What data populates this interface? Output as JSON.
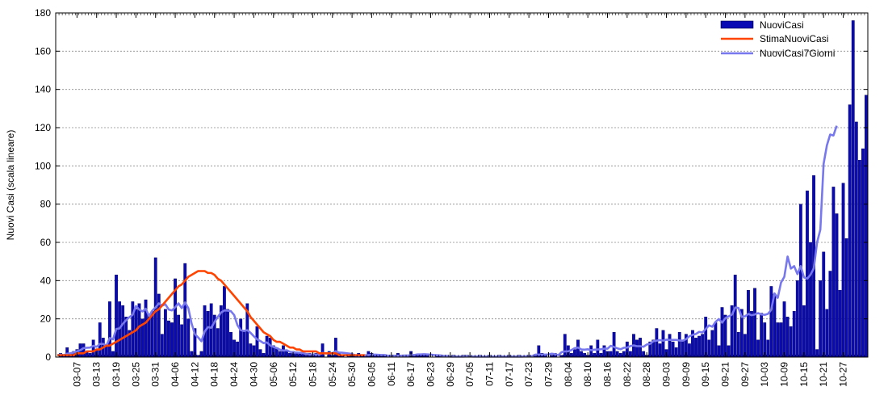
{
  "chart_data": {
    "type": "bar",
    "ylabel": "Nuovi Casi (scala lineare)",
    "ylim": [
      0,
      180
    ],
    "yticks": [
      0,
      20,
      40,
      60,
      80,
      100,
      120,
      140,
      160,
      180
    ],
    "grid": true,
    "legend_position": "top-right",
    "start_date": "03-01",
    "xtick_labels": [
      "03-07",
      "03-13",
      "03-19",
      "03-25",
      "03-31",
      "04-06",
      "04-12",
      "04-18",
      "04-24",
      "04-30",
      "05-06",
      "05-12",
      "05-18",
      "05-24",
      "05-30",
      "06-05",
      "06-11",
      "06-17",
      "06-23",
      "06-29",
      "07-05",
      "07-11",
      "07-17",
      "07-23",
      "07-29",
      "08-04",
      "08-10",
      "08-16",
      "08-22",
      "08-28",
      "09-03",
      "09-09",
      "09-15",
      "09-21",
      "09-27",
      "10-03",
      "10-09",
      "10-15",
      "10-21",
      "10-27"
    ],
    "colors": {
      "bars": "#0a0ab4",
      "bar_outline": "#000050",
      "estimate": "#ff4400",
      "avg7": "#7777ee"
    },
    "series": [
      {
        "name": "NuoviCasi",
        "kind": "bar",
        "values": [
          0,
          2,
          1,
          5,
          2,
          3,
          4,
          7,
          7,
          3,
          2,
          9,
          4,
          18,
          10,
          6,
          29,
          3,
          43,
          29,
          27,
          21,
          14,
          29,
          25,
          28,
          20,
          30,
          22,
          24,
          52,
          33,
          12,
          25,
          19,
          18,
          41,
          22,
          17,
          49,
          20,
          3,
          15,
          1,
          3,
          27,
          24,
          28,
          22,
          15,
          27,
          37,
          25,
          13,
          9,
          8,
          20,
          14,
          28,
          7,
          6,
          16,
          4,
          2,
          11,
          10,
          6,
          5,
          3,
          6,
          3,
          2,
          3,
          2,
          2,
          2,
          1,
          2,
          1,
          2,
          1,
          7,
          0,
          3,
          1,
          10,
          2,
          1,
          0,
          2,
          1,
          1,
          2,
          1,
          1,
          3,
          2,
          1,
          1,
          1,
          1,
          0,
          0,
          1,
          2,
          1,
          1,
          1,
          3,
          1,
          1,
          1,
          1,
          1,
          0,
          0,
          1,
          1,
          0,
          1,
          0,
          1,
          0,
          0,
          1,
          1,
          0,
          0,
          0,
          1,
          0,
          0,
          1,
          0,
          0,
          1,
          0,
          0,
          1,
          0,
          0,
          1,
          0,
          0,
          1,
          0,
          1,
          6,
          2,
          1,
          0,
          1,
          2,
          0,
          1,
          12,
          6,
          2,
          4,
          9,
          3,
          2,
          1,
          6,
          2,
          9,
          2,
          6,
          3,
          3,
          13,
          3,
          2,
          3,
          8,
          3,
          12,
          9,
          10,
          3,
          1,
          8,
          9,
          15,
          7,
          14,
          4,
          12,
          8,
          5,
          13,
          9,
          12,
          7,
          14,
          10,
          11,
          12,
          21,
          9,
          14,
          18,
          6,
          26,
          22,
          6,
          27,
          43,
          13,
          25,
          12,
          35,
          24,
          36,
          9,
          23,
          18,
          9,
          37,
          33,
          18,
          18,
          29,
          21,
          16,
          24,
          40,
          80,
          27,
          87,
          60,
          95,
          4,
          40,
          55,
          25,
          45,
          89,
          75,
          35,
          91,
          62,
          132,
          176,
          123,
          103,
          109,
          137
        ]
      },
      {
        "name": "StimaNuoviCasi",
        "kind": "line",
        "values": [
          1,
          1,
          1,
          1,
          1,
          1,
          2,
          2,
          2,
          3,
          3,
          3,
          4,
          4,
          5,
          6,
          6,
          7,
          8,
          9,
          10,
          11,
          12,
          13,
          14,
          16,
          17,
          18,
          20,
          22,
          24,
          25,
          27,
          29,
          31,
          33,
          35,
          37,
          38,
          40,
          42,
          43,
          44,
          45,
          45,
          45,
          44,
          44,
          43,
          41,
          40,
          38,
          36,
          34,
          32,
          30,
          28,
          26,
          24,
          21,
          19,
          17,
          15,
          13,
          12,
          11,
          9,
          8,
          8,
          7,
          6,
          5,
          5,
          4,
          4,
          3,
          3,
          3,
          3,
          3,
          2,
          2,
          2,
          2,
          2,
          2,
          1,
          1,
          1,
          1,
          1,
          1,
          1,
          1,
          1
        ]
      },
      {
        "name": "NuoviCasi7Giorni",
        "kind": "line",
        "values": [
          1.0,
          1.3,
          1.0,
          1.8,
          2.0,
          2.4,
          3.0,
          3.6,
          4.7,
          4.9,
          5.0,
          5.9,
          5.4,
          6.9,
          6.9,
          6.0,
          10.0,
          9.3,
          14.7,
          15.0,
          17.4,
          19.3,
          20.9,
          22.1,
          26.7,
          24.9,
          23.9,
          25.3,
          21.4,
          24.3,
          26.0,
          28.1,
          26.9,
          27.6,
          24.9,
          24.4,
          26.1,
          28.1,
          25.6,
          28.6,
          25.6,
          17.6,
          12.0,
          10.3,
          8.3,
          13.4,
          15.7,
          15.3,
          18.4,
          21.0,
          23.3,
          24.4,
          24.3,
          24.0,
          22.0,
          16.7,
          14.1,
          13.6,
          14.1,
          12.7,
          10.9,
          9.3,
          8.4,
          7.3,
          7.7,
          6.1,
          5.3,
          4.7,
          3.9,
          3.4,
          3.6,
          2.8,
          2.4,
          2.4,
          2.3,
          2.1,
          1.6,
          1.4,
          1.3,
          1.3,
          1.2,
          2.2,
          1.9,
          2.0,
          2.0,
          3.1,
          2.4,
          2.3,
          2.1,
          1.9,
          1.6,
          0.9,
          0.8,
          1.0,
          0.9,
          1.1,
          1.2,
          1.3,
          1.2,
          1.1,
          1.1,
          0.7,
          0.7,
          0.7,
          0.7,
          0.7,
          0.8,
          0.8,
          1.1,
          1.1,
          1.4,
          1.4,
          1.5,
          1.4,
          1.3,
          1.1,
          1.0,
          0.9,
          0.6,
          0.6,
          0.3,
          0.3,
          0.3,
          0.3,
          0.3,
          0.4,
          0.4,
          0.3,
          0.3,
          0.3,
          0.3,
          0.3,
          0.3,
          0.3,
          0.3,
          0.3,
          0.3,
          0.3,
          0.3,
          0.3,
          0.3,
          0.3,
          0.3,
          0.4,
          0.4,
          0.5,
          1.3,
          1.3,
          1.3,
          1.3,
          1.4,
          1.8,
          1.5,
          1.0,
          2.6,
          3.0,
          3.0,
          3.7,
          4.7,
          5.0,
          4.0,
          3.9,
          4.1,
          3.6,
          3.9,
          4.0,
          4.1,
          4.4,
          4.4,
          5.9,
          5.3,
          4.6,
          4.1,
          4.9,
          5.0,
          5.8,
          6.1,
          5.7,
          5.7,
          5.4,
          6.6,
          6.9,
          8.3,
          8.6,
          8.9,
          8.6,
          9.1,
          9.0,
          9.0,
          9.0,
          8.7,
          8.6,
          9.4,
          10.9,
          11.6,
          12.1,
          13.2,
          12.9,
          14.7,
          16.6,
          15.9,
          18.4,
          19.9,
          18.0,
          20.4,
          21.3,
          22.2,
          25.9,
          25.7,
          21.0,
          21.3,
          22.6,
          21.9,
          22.3,
          23.0,
          22.3,
          22.1,
          22.6,
          24.7,
          33.3,
          31.0,
          39.0,
          42.0,
          52.6,
          46.3,
          47.6,
          43.4,
          47.6,
          41.7,
          41.0,
          43.1,
          46.4,
          59.9,
          66.7,
          101.1,
          110.7,
          116.4,
          115.9,
          121.0
        ]
      }
    ]
  }
}
